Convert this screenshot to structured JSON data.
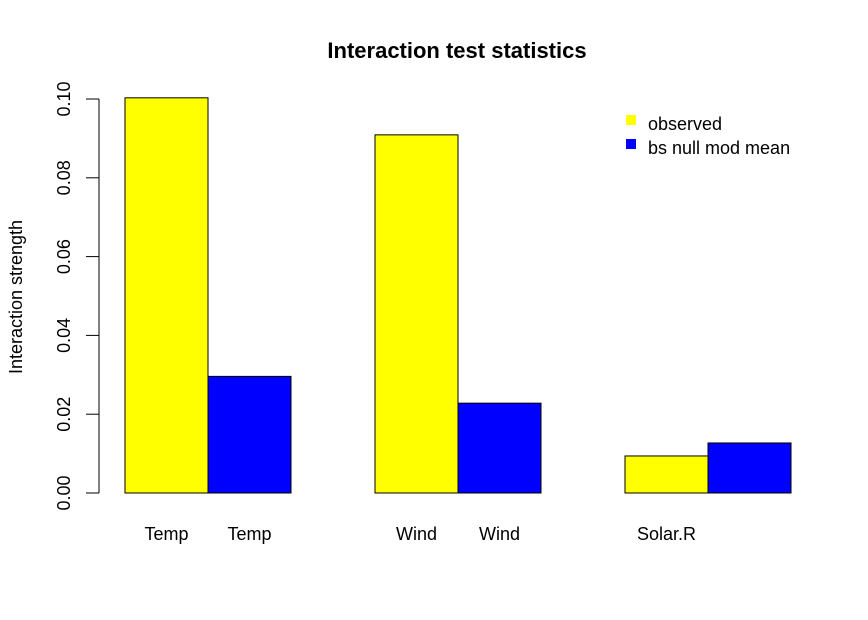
{
  "chart_data": {
    "type": "bar",
    "title": "Interaction test statistics",
    "ylabel": "Interaction strength",
    "xlabel": "",
    "ylim": [
      0,
      0.1
    ],
    "yticks": [
      0.0,
      0.02,
      0.04,
      0.06,
      0.08,
      0.1
    ],
    "ytick_labels": [
      "0.00",
      "0.02",
      "0.04",
      "0.06",
      "0.08",
      "0.10"
    ],
    "grid": false,
    "legend_position": "top-right",
    "groups": [
      {
        "bars": [
          {
            "label": "Temp",
            "series": "observed",
            "value": 0.1003
          },
          {
            "label": "Temp",
            "series": "bs null mod mean",
            "value": 0.0296
          }
        ]
      },
      {
        "bars": [
          {
            "label": "Wind",
            "series": "observed",
            "value": 0.0909
          },
          {
            "label": "Wind",
            "series": "bs null mod mean",
            "value": 0.0228
          }
        ]
      },
      {
        "bars": [
          {
            "label": "Solar.R",
            "series": "observed",
            "value": 0.0094
          },
          {
            "label": "",
            "series": "bs null mod mean",
            "value": 0.0127
          }
        ]
      }
    ],
    "series": [
      {
        "name": "observed",
        "color": "#ffff00"
      },
      {
        "name": "bs null mod mean",
        "color": "#0000ff"
      }
    ]
  }
}
